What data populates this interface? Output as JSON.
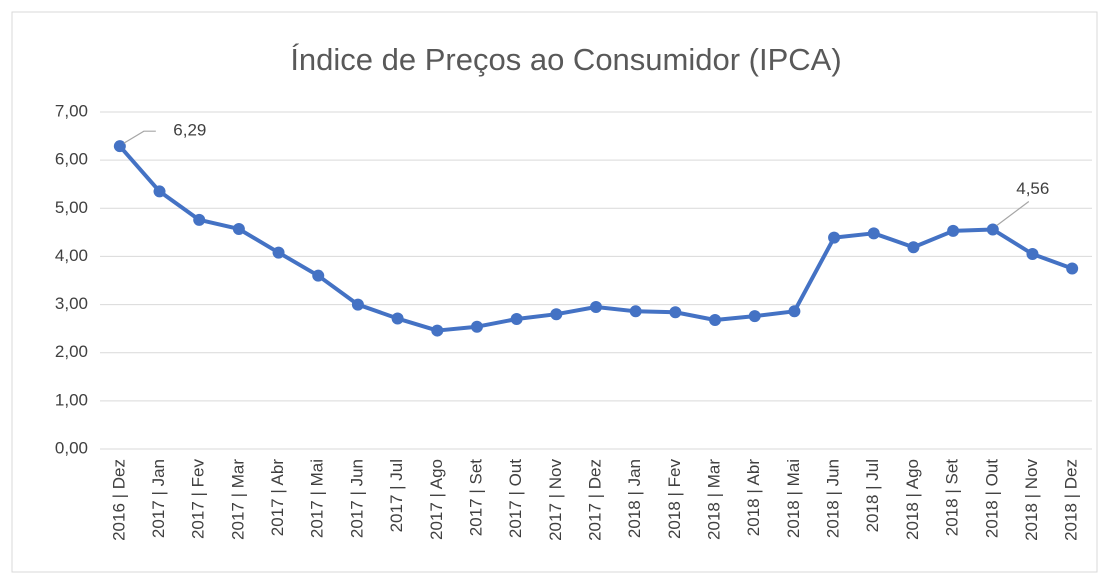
{
  "chart_data": {
    "type": "line",
    "title": "Índice de Preços ao Consumidor (IPCA)",
    "categories": [
      "2016 | Dez",
      "2017 | Jan",
      "2017 | Fev",
      "2017 | Mar",
      "2017 | Abr",
      "2017 | Mai",
      "2017 | Jun",
      "2017 | Jul",
      "2017 | Ago",
      "2017 | Set",
      "2017 | Out",
      "2017 | Nov",
      "2017 | Dez",
      "2018 | Jan",
      "2018 | Fev",
      "2018 | Mar",
      "2018 | Abr",
      "2018 | Mai",
      "2018 | Jun",
      "2018 | Jul",
      "2018 | Ago",
      "2018 | Set",
      "2018 | Out",
      "2018 | Nov",
      "2018 | Dez"
    ],
    "values": [
      6.29,
      5.35,
      4.76,
      4.57,
      4.08,
      3.6,
      3.0,
      2.71,
      2.46,
      2.54,
      2.7,
      2.8,
      2.95,
      2.86,
      2.84,
      2.68,
      2.76,
      2.86,
      4.39,
      4.48,
      4.19,
      4.53,
      4.56,
      4.05,
      3.75
    ],
    "value_labels": [
      "6,29",
      null,
      null,
      null,
      null,
      null,
      null,
      null,
      null,
      null,
      null,
      null,
      null,
      null,
      null,
      null,
      null,
      null,
      null,
      null,
      null,
      null,
      "4,56",
      null,
      null
    ],
    "color": "#4472c4",
    "ylim": [
      0,
      7
    ],
    "yticks": [
      {
        "value": 0,
        "label": "0,00"
      },
      {
        "value": 1,
        "label": "1,00"
      },
      {
        "value": 2,
        "label": "2,00"
      },
      {
        "value": 3,
        "label": "3,00"
      },
      {
        "value": 4,
        "label": "4,00"
      },
      {
        "value": 5,
        "label": "5,00"
      },
      {
        "value": 6,
        "label": "6,00"
      },
      {
        "value": 7,
        "label": "7,00"
      }
    ],
    "grid": true
  }
}
